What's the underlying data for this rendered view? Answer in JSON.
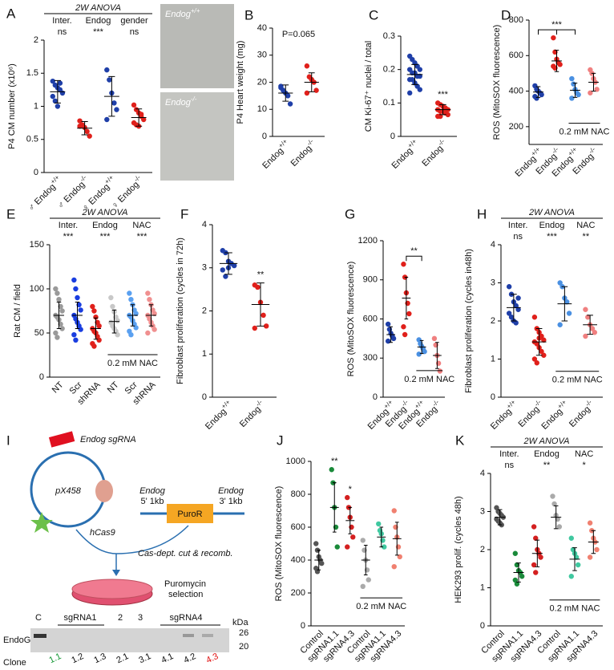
{
  "chart_data": [
    {
      "type": "strip",
      "panel": "A",
      "ylabel": "P4 CM number (x10⁶)",
      "ylim": [
        0,
        2
      ],
      "yticks": [
        0,
        0.5,
        1,
        1.5,
        2
      ],
      "categories": [
        "♂ Endog+/+",
        "♂ Endog-/-",
        "♀ Endog+/+",
        "♀ Endog-/-"
      ],
      "colors": [
        "#1f3fa8",
        "#e0201b",
        "#1f3fa8",
        "#e0201b"
      ],
      "means": [
        1.22,
        0.67,
        1.15,
        0.83
      ],
      "errors": [
        0.17,
        0.1,
        0.3,
        0.13
      ],
      "points": [
        [
          1.38,
          1.32,
          1.28,
          1.25,
          1.2,
          1.15,
          1.08,
          1.0,
          1.35
        ],
        [
          0.78,
          0.72,
          0.68,
          0.62,
          0.55,
          0.7
        ],
        [
          1.55,
          1.4,
          1.2,
          1.05,
          0.95,
          0.8
        ],
        [
          1.02,
          0.95,
          0.9,
          0.85,
          0.8,
          0.75,
          0.72,
          0.7,
          0.88
        ]
      ],
      "anova": {
        "title": "2W ANOVA",
        "labels": [
          "Inter.",
          "Endog",
          "gender"
        ],
        "results": [
          "ns",
          "***",
          "ns"
        ]
      },
      "image_labels": [
        "Endog+/+",
        "Endog-/-"
      ]
    },
    {
      "type": "strip",
      "panel": "B",
      "ylabel": "P4 Heart weight (mg)",
      "ylim": [
        0,
        40
      ],
      "yticks": [
        0,
        10,
        20,
        30,
        40
      ],
      "categories": [
        "Endog+/+",
        "Endog-/-"
      ],
      "colors": [
        "#1f3fa8",
        "#e0201b"
      ],
      "means": [
        16,
        20
      ],
      "errors": [
        3,
        3.5
      ],
      "points": [
        [
          18,
          17,
          16,
          15,
          12,
          18.5
        ],
        [
          26,
          22,
          21,
          20,
          17,
          16
        ]
      ],
      "annotation": "P=0.065"
    },
    {
      "type": "strip",
      "panel": "C",
      "ylabel": "CM  Ki-67⁺ nuclei / total",
      "ylim": [
        0,
        0.3
      ],
      "yticks": [
        0,
        0.1,
        0.2,
        0.3
      ],
      "categories": [
        "Endog+/+",
        "Endog-/-"
      ],
      "colors": [
        "#1f3fa8",
        "#e0201b"
      ],
      "means": [
        0.185,
        0.08
      ],
      "errors": [
        0.03,
        0.015
      ],
      "points": [
        [
          0.24,
          0.23,
          0.22,
          0.21,
          0.2,
          0.2,
          0.19,
          0.19,
          0.18,
          0.18,
          0.17,
          0.17,
          0.16,
          0.15,
          0.14,
          0.13
        ],
        [
          0.1,
          0.095,
          0.09,
          0.085,
          0.08,
          0.08,
          0.075,
          0.075,
          0.07,
          0.065,
          0.06,
          0.06
        ]
      ],
      "significance": [
        null,
        "***"
      ]
    },
    {
      "type": "strip",
      "panel": "D",
      "ylabel": "ROS (MitoSOX fluorescence)",
      "ylim": [
        100,
        800
      ],
      "yticks": [
        200,
        400,
        600,
        800
      ],
      "categories": [
        "Endog+/+",
        "Endog-/-",
        "Endog+/+",
        "Endog-/-"
      ],
      "colors": [
        "#1f3fa8",
        "#e0201b",
        "#4a90e2",
        "#f08080"
      ],
      "means": [
        395,
        570,
        405,
        450
      ],
      "errors": [
        30,
        60,
        40,
        50
      ],
      "points": [
        [
          430,
          410,
          400,
          390,
          380,
          370,
          360
        ],
        [
          700,
          620,
          580,
          560,
          550,
          540,
          530
        ],
        [
          470,
          440,
          410,
          390,
          380,
          360
        ],
        [
          520,
          500,
          470,
          450,
          410,
          390
        ]
      ],
      "significance": [
        null,
        "***",
        null,
        null
      ],
      "bracket": "both",
      "treatment": "0.2 mM NAC"
    },
    {
      "type": "strip",
      "panel": "E",
      "ylabel": "Rat CM / field",
      "ylim": [
        0,
        150
      ],
      "yticks": [
        0,
        50,
        100,
        150
      ],
      "categories": [
        "NT",
        "Scr",
        "shRNA",
        "NT",
        "Scr",
        "shRNA"
      ],
      "colors": [
        "#9a9a9a",
        "#1a3ee0",
        "#e0201b",
        "#c8c8c8",
        "#5aa0f0",
        "#f09090"
      ],
      "means": [
        70,
        70,
        55,
        63,
        70,
        70
      ],
      "errors": [
        15,
        15,
        12,
        13,
        12,
        12
      ],
      "points": [
        [
          100,
          95,
          88,
          80,
          75,
          70,
          68,
          65,
          60,
          55,
          50,
          45
        ],
        [
          110,
          100,
          90,
          82,
          76,
          70,
          66,
          62,
          58,
          54,
          48,
          42
        ],
        [
          80,
          75,
          68,
          62,
          58,
          55,
          52,
          50,
          46,
          42,
          38,
          35
        ],
        [
          90,
          80,
          74,
          68,
          64,
          62,
          58,
          55,
          52,
          48
        ],
        [
          95,
          88,
          82,
          76,
          72,
          70,
          68,
          64,
          60,
          56,
          52,
          48
        ],
        [
          95,
          88,
          82,
          76,
          72,
          70,
          66,
          62,
          58,
          54,
          50
        ]
      ],
      "anova": {
        "title": "2W ANOVA",
        "labels": [
          "Inter.",
          "Endog",
          "NAC"
        ],
        "results": [
          "***",
          "***",
          "***"
        ]
      },
      "treatment": "0.2 mM NAC"
    },
    {
      "type": "strip",
      "panel": "F",
      "ylabel": "Fibroblast proliferation (cycles in 72h)",
      "ylim": [
        0,
        4
      ],
      "yticks": [
        0,
        1,
        2,
        3,
        4
      ],
      "categories": [
        "Endog+/+",
        "Endog-/-"
      ],
      "colors": [
        "#1f3fa8",
        "#e0201b"
      ],
      "means": [
        3.1,
        2.15
      ],
      "errors": [
        0.25,
        0.5
      ],
      "points": [
        [
          3.4,
          3.35,
          3.15,
          3.1,
          3.05,
          2.95,
          2.8,
          3.0
        ],
        [
          2.6,
          2.55,
          2.2,
          1.9,
          1.65,
          1.6
        ]
      ],
      "significance": [
        null,
        "**"
      ]
    },
    {
      "type": "strip",
      "panel": "G",
      "ylabel": "ROS (MitoSOX fluorescence)",
      "ylim": [
        0,
        1200
      ],
      "yticks": [
        0,
        300,
        600,
        900,
        1200
      ],
      "categories": [
        "Endog+/+",
        "Endog-/-",
        "Endog+/+",
        "Endog-/-"
      ],
      "colors": [
        "#1f3fa8",
        "#e0201b",
        "#4a90e2",
        "#f08080"
      ],
      "means": [
        480,
        760,
        385,
        320
      ],
      "errors": [
        60,
        160,
        50,
        100
      ],
      "points": [
        [
          560,
          520,
          490,
          470,
          450,
          430
        ],
        [
          1020,
          920,
          800,
          720,
          640,
          540,
          480
        ],
        [
          440,
          410,
          390,
          370,
          350,
          330
        ],
        [
          450,
          400,
          320,
          260,
          200
        ]
      ],
      "significance": [
        null,
        "**",
        null,
        null
      ],
      "bracket": "right",
      "treatment": "0.2 mM NAC"
    },
    {
      "type": "strip",
      "panel": "H",
      "ylabel": "Fibroblast proliferation (cycles in48h)",
      "ylim": [
        0,
        4
      ],
      "yticks": [
        0,
        1,
        2,
        3,
        4
      ],
      "categories": [
        "Endog+/+",
        "Endog-/-",
        "Endog+/+",
        "Endog-/-"
      ],
      "colors": [
        "#1f3fa8",
        "#e0201b",
        "#4a90e2",
        "#f08080"
      ],
      "means": [
        2.35,
        1.45,
        2.45,
        1.9
      ],
      "errors": [
        0.35,
        0.35,
        0.45,
        0.25
      ],
      "points": [
        [
          2.9,
          2.7,
          2.5,
          2.4,
          2.3,
          2.2,
          2.1,
          2.0,
          1.95,
          2.6
        ],
        [
          2.1,
          1.8,
          1.7,
          1.6,
          1.5,
          1.45,
          1.4,
          1.3,
          1.2,
          1.1,
          1.0,
          0.9,
          1.55
        ],
        [
          3.0,
          2.9,
          2.6,
          2.5,
          2.2,
          1.9
        ],
        [
          2.3,
          2.1,
          1.9,
          1.8,
          1.7,
          1.6
        ]
      ],
      "anova": {
        "title": "2W ANOVA",
        "labels": [
          "Inter.",
          "Endog",
          "NAC"
        ],
        "results": [
          "ns",
          "***",
          "**"
        ]
      },
      "treatment": "0.2 mM NAC"
    },
    {
      "type": "strip",
      "panel": "J",
      "ylabel": "ROS (MitoSOX fluorescence)",
      "ylim": [
        0,
        1000
      ],
      "yticks": [
        0,
        200,
        400,
        600,
        800,
        1000
      ],
      "categories": [
        "Control",
        "sgRNA1.1",
        "sgRNA4.3",
        "Control",
        "sgRNA1.1",
        "sgRNA4.3"
      ],
      "colors": [
        "#555555",
        "#1a8a3a",
        "#d42020",
        "#aaaaaa",
        "#40c8a0",
        "#f08070"
      ],
      "means": [
        400,
        720,
        640,
        400,
        540,
        530
      ],
      "errors": [
        60,
        150,
        80,
        90,
        60,
        100
      ],
      "points": [
        [
          500,
          460,
          420,
          400,
          380,
          350,
          330
        ],
        [
          950,
          870,
          720,
          600,
          480
        ],
        [
          780,
          720,
          660,
          600,
          540,
          480
        ],
        [
          520,
          460,
          400,
          340,
          280,
          240
        ],
        [
          620,
          580,
          560,
          520,
          480
        ],
        [
          700,
          600,
          540,
          480,
          420,
          360
        ]
      ],
      "significance": [
        null,
        "**",
        "*",
        null,
        null,
        null
      ],
      "treatment": "0.2 mM NAC"
    },
    {
      "type": "strip",
      "panel": "K",
      "ylabel": "HEK293 prolif. (cycles 48h)",
      "ylim": [
        0,
        4
      ],
      "yticks": [
        0,
        1,
        2,
        3,
        4
      ],
      "categories": [
        "Control",
        "sgRNA1.1",
        "sgRNA4.3",
        "Control",
        "sgRNA1.1",
        "sgRNA4.3"
      ],
      "colors": [
        "#555555",
        "#1a8a3a",
        "#d42020",
        "#aaaaaa",
        "#40c8a0",
        "#f08070"
      ],
      "means": [
        2.85,
        1.4,
        1.9,
        2.85,
        1.75,
        2.2
      ],
      "errors": [
        0.2,
        0.25,
        0.35,
        0.3,
        0.3,
        0.3
      ],
      "points": [
        [
          3.1,
          3.0,
          2.95,
          2.9,
          2.85,
          2.8,
          2.75,
          2.7,
          2.65
        ],
        [
          1.9,
          1.6,
          1.45,
          1.4,
          1.3,
          1.2,
          1.1
        ],
        [
          2.6,
          2.3,
          2.0,
          1.9,
          1.8,
          1.6,
          1.4
        ],
        [
          3.4,
          3.2,
          2.9,
          2.8,
          2.6
        ],
        [
          2.3,
          2.0,
          1.9,
          1.8,
          1.6,
          1.3
        ],
        [
          2.7,
          2.5,
          2.3,
          2.2,
          2.0,
          1.8
        ]
      ],
      "anova": {
        "title": "2W ANOVA",
        "labels": [
          "Inter.",
          "Endog",
          "NAC"
        ],
        "results": [
          "ns",
          "**",
          "*"
        ]
      },
      "treatment": "0.2 mM NAC"
    }
  ],
  "panel_i": {
    "panel": "I",
    "sgrna": "Endog sgRNA",
    "plasmid": "pX458",
    "cas": "hCas9",
    "left_arm": [
      "Endog",
      "5' 1kb"
    ],
    "marker": "PuroR",
    "right_arm": [
      "Endog",
      "3' 1kb"
    ],
    "step": "Cas-dept. cut & recomb.",
    "selection": [
      "Puromycin",
      "selection"
    ],
    "lanes": [
      "C",
      "sgRNA1",
      "2",
      "3",
      "sgRNA4"
    ],
    "kda": "kDa",
    "sizes": [
      26,
      20
    ],
    "protein": "EndoG",
    "clone_title": "Clone",
    "clones": [
      "1.1",
      "1.2",
      "1.3",
      "2.1",
      "3.1",
      "4.1",
      "4.2",
      "4.3"
    ]
  }
}
